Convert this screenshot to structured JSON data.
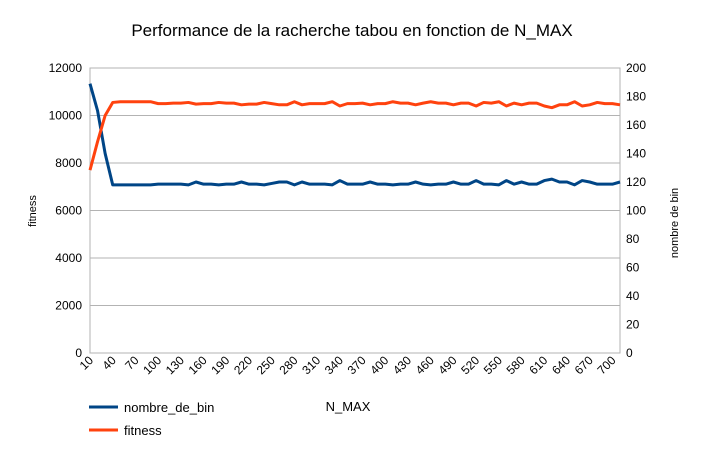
{
  "chart_data": {
    "type": "line",
    "title": "Performance de la racherche tabou en fonction de N_MAX",
    "xlabel": "N_MAX",
    "ylabel_left": "fitness",
    "ylabel_right": "nombre de bin",
    "ylim_left": [
      0,
      12000
    ],
    "ylim_right": [
      0,
      200
    ],
    "yticks_left": [
      0,
      2000,
      4000,
      6000,
      8000,
      10000,
      12000
    ],
    "yticks_right": [
      0,
      20,
      40,
      60,
      80,
      100,
      120,
      140,
      160,
      180,
      200
    ],
    "grid": true,
    "legend_placement": "bottom-left",
    "x": [
      10,
      20,
      30,
      40,
      50,
      60,
      70,
      80,
      90,
      100,
      110,
      120,
      130,
      140,
      150,
      160,
      170,
      180,
      190,
      200,
      210,
      220,
      230,
      240,
      250,
      260,
      270,
      280,
      290,
      300,
      310,
      320,
      330,
      340,
      350,
      360,
      370,
      380,
      390,
      400,
      410,
      420,
      430,
      440,
      450,
      460,
      470,
      480,
      490,
      500,
      510,
      520,
      530,
      540,
      550,
      560,
      570,
      580,
      590,
      600,
      610,
      620,
      630,
      640,
      650,
      660,
      670,
      680,
      690,
      700,
      710
    ],
    "x_tick_labels": [
      "10",
      "40",
      "70",
      "100",
      "130",
      "160",
      "190",
      "220",
      "250",
      "280",
      "310",
      "340",
      "370",
      "400",
      "430",
      "460",
      "490",
      "520",
      "550",
      "580",
      "610",
      "640",
      "670",
      "700"
    ],
    "series": [
      {
        "name": "nombre_de_bin",
        "axis": "right",
        "color": "#004586",
        "values": [
          189,
          170,
          140,
          118,
          118,
          118,
          118,
          118,
          118,
          118.5,
          118.5,
          118.5,
          118.5,
          118,
          120,
          118.5,
          118.5,
          118,
          118.5,
          118.5,
          120,
          118.5,
          118.5,
          118,
          119,
          120,
          120,
          118,
          120,
          118.5,
          118.5,
          118.5,
          118,
          121,
          118.5,
          118.5,
          118.5,
          120,
          118.5,
          118.5,
          118,
          118.5,
          118.5,
          120,
          118.5,
          118,
          118.5,
          118.5,
          120,
          118.5,
          118.5,
          121,
          118.5,
          118.5,
          118,
          121,
          118.5,
          120,
          118.5,
          118.5,
          121,
          122,
          120,
          120,
          118,
          121,
          120,
          118.5,
          118.5,
          118.5,
          120
        ]
      },
      {
        "name": "fitness",
        "axis": "left",
        "color": "#ff420e",
        "values": [
          7700,
          8900,
          10000,
          10550,
          10580,
          10580,
          10580,
          10580,
          10580,
          10500,
          10500,
          10520,
          10520,
          10550,
          10480,
          10500,
          10500,
          10550,
          10520,
          10520,
          10450,
          10480,
          10480,
          10550,
          10500,
          10450,
          10450,
          10580,
          10450,
          10500,
          10500,
          10500,
          10580,
          10400,
          10500,
          10500,
          10520,
          10450,
          10500,
          10500,
          10580,
          10520,
          10520,
          10450,
          10520,
          10580,
          10520,
          10520,
          10450,
          10520,
          10520,
          10400,
          10550,
          10520,
          10580,
          10400,
          10520,
          10450,
          10520,
          10520,
          10400,
          10330,
          10450,
          10450,
          10580,
          10400,
          10450,
          10550,
          10500,
          10500,
          10450
        ]
      }
    ]
  }
}
